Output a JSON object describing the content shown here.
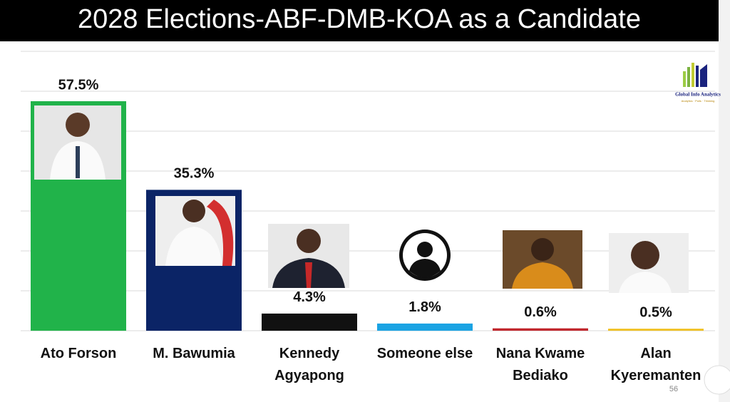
{
  "chart_data": {
    "type": "bar",
    "title": "2028 Elections-ABF-DMB-KOA as a Candidate",
    "categories": [
      "Ato Forson",
      "M. Bawumia",
      "Kennedy Agyapong",
      "Someone else",
      "Nana Kwame Bediako",
      "Alan Kyeremanten"
    ],
    "values": [
      57.5,
      35.3,
      4.3,
      1.8,
      0.6,
      0.5
    ],
    "value_labels": [
      "57.5%",
      "35.3%",
      "4.3%",
      "1.8%",
      "0.6%",
      "0.5%"
    ],
    "colors": [
      "#21b34a",
      "#0b2466",
      "#111111",
      "#1aa3e3",
      "#c1272d",
      "#f0c020"
    ],
    "ylim": [
      0,
      70
    ],
    "yticks": [
      0,
      10,
      20,
      30,
      40,
      50,
      60,
      70
    ],
    "show_ytick_labels": false,
    "grid": true
  },
  "logo": {
    "name": "Global Info Analytics",
    "tagline": "Analytics · Polls · Thinking"
  },
  "page_number": "56"
}
